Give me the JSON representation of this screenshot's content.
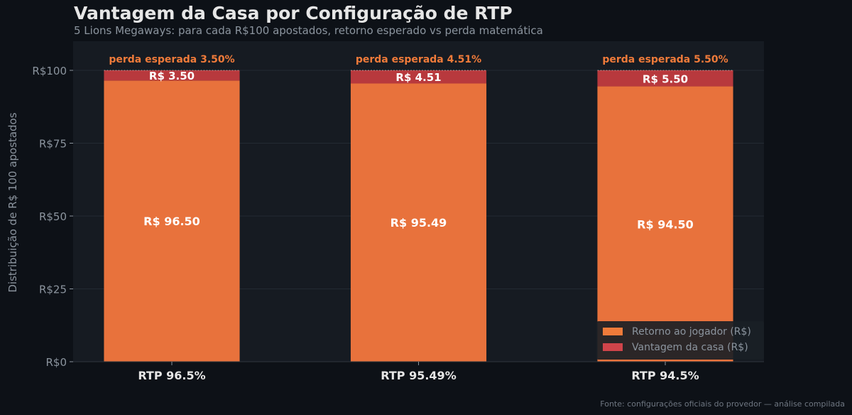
{
  "chart_data": {
    "type": "bar",
    "stacked": true,
    "title": "Vantagem da Casa por Configuração de RTP",
    "subtitle": "5 Lions Megaways: para cada R$100 apostados, retorno esperado vs perda matemática",
    "ylabel": "Distribuição de R$ 100 apostados",
    "xlabel": "",
    "categories": [
      "RTP 96.5%",
      "RTP 95.49%",
      "RTP 94.5%"
    ],
    "series": [
      {
        "name": "Retorno ao jogador (R$)",
        "values": [
          96.5,
          95.49,
          94.5
        ],
        "color": "#e8723c",
        "labels": [
          "R$ 96.50",
          "R$ 95.49",
          "R$ 94.50"
        ]
      },
      {
        "name": "Vantagem da casa (R$)",
        "values": [
          3.5,
          4.51,
          5.5
        ],
        "color": "#b8393d",
        "labels": [
          "R$ 3.50",
          "R$ 4.51",
          "R$ 5.50"
        ]
      }
    ],
    "annotations": [
      "perda esperada 3.50%",
      "perda esperada 4.51%",
      "perda esperada 5.50%"
    ],
    "annotation_color": "#f07b3a",
    "yticks": [
      0,
      25,
      50,
      75,
      100
    ],
    "ytick_labels": [
      "R$0",
      "R$25",
      "R$50",
      "R$75",
      "R$100"
    ],
    "ylim": [
      0,
      110
    ],
    "grid": true,
    "legend_position": "lower-right",
    "source": "Fonte: configurações oficiais do provedor — análise compilada"
  }
}
